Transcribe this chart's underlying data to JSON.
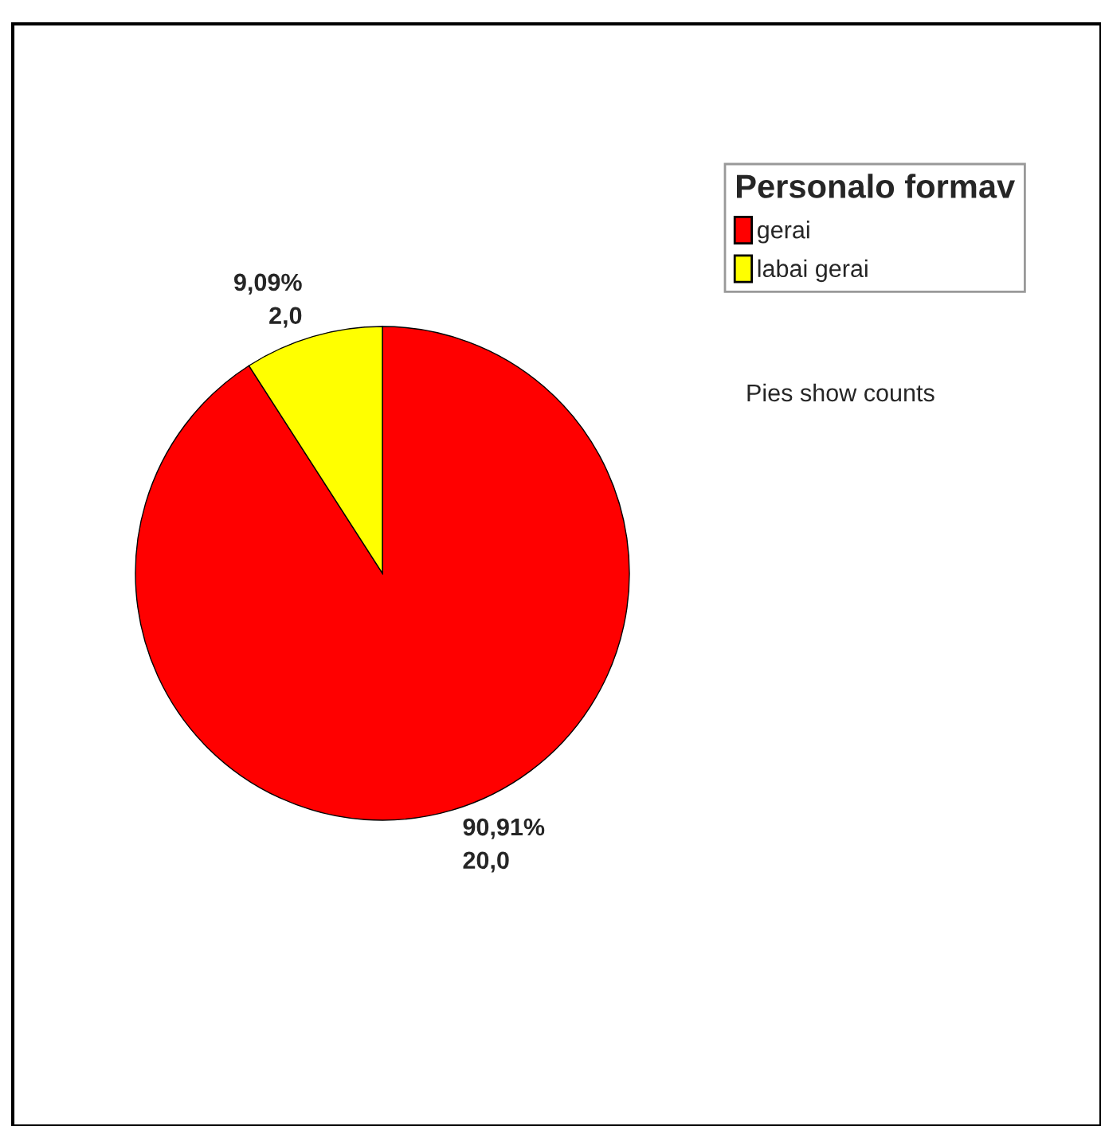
{
  "chart_data": {
    "type": "pie",
    "categories": [
      "gerai",
      "labai gerai"
    ],
    "values": [
      20,
      2
    ],
    "colors": [
      "#ff0000",
      "#ffff00"
    ],
    "value_labels": [
      "90,91%\n20,0",
      "9,09%\n2,0"
    ],
    "legend_title": "Personalo formav",
    "legend": "top right",
    "annotations": [
      "Pies show counts"
    ]
  }
}
